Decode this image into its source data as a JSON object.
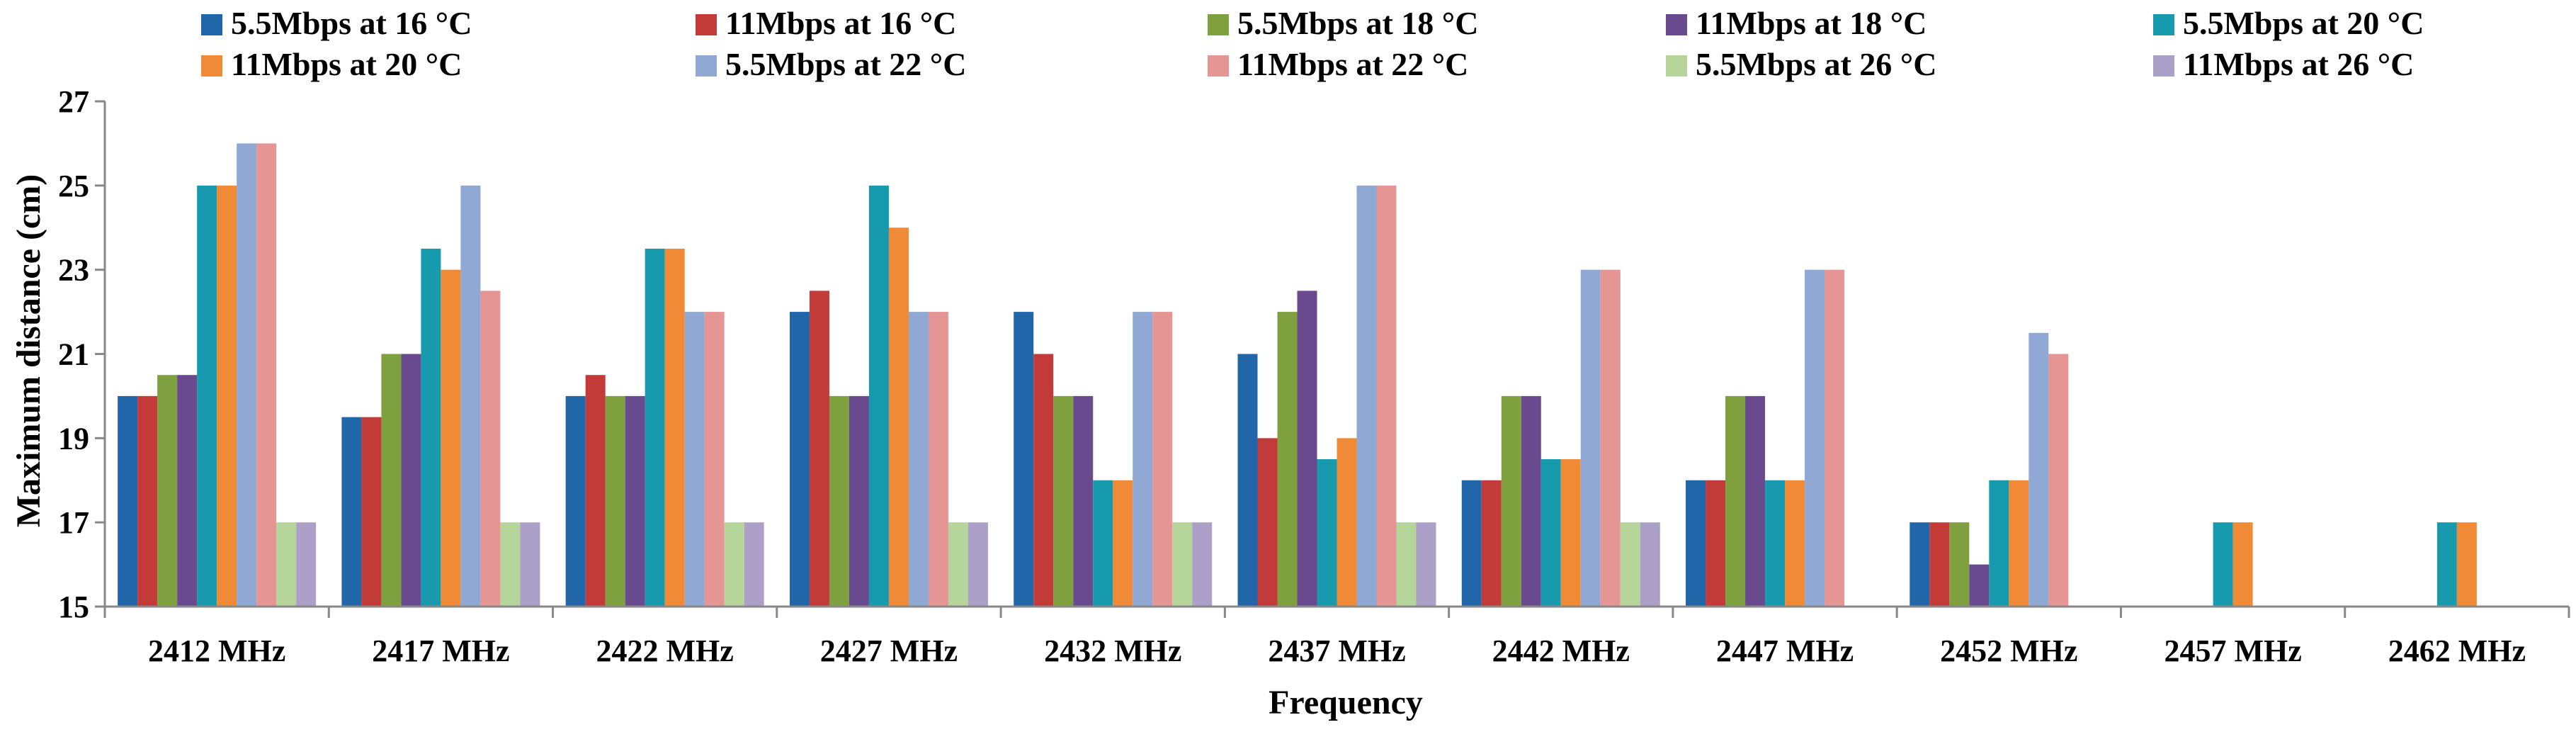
{
  "chart_data": {
    "type": "bar",
    "title": "",
    "xlabel": "Frequency",
    "ylabel": "Maximum distance (cm)",
    "ylim": [
      15,
      27
    ],
    "yticks": [
      15,
      17,
      19,
      21,
      23,
      25,
      27
    ],
    "grid": false,
    "legend_position": "top",
    "categories": [
      "2412 MHz",
      "2417 MHz",
      "2422 MHz",
      "2427 MHz",
      "2432 MHz",
      "2437 MHz",
      "2442 MHz",
      "2447 MHz",
      "2452 MHz",
      "2457 MHz",
      "2462 MHz"
    ],
    "series": [
      {
        "name": "5.5Mbps at 16 °C",
        "color": "#2166A8",
        "values": [
          20,
          19.5,
          20,
          22,
          22,
          21,
          18,
          18,
          17,
          null,
          null
        ]
      },
      {
        "name": "11Mbps at 16 °C",
        "color": "#C33B38",
        "values": [
          20,
          19.5,
          20.5,
          22.5,
          21,
          19,
          18,
          18,
          17,
          null,
          null
        ]
      },
      {
        "name": "5.5Mbps at 18 °C",
        "color": "#7FA03E",
        "values": [
          20.5,
          21,
          20,
          20,
          20,
          22,
          20,
          20,
          17,
          null,
          null
        ]
      },
      {
        "name": "11Mbps at 18 °C",
        "color": "#6A4A8E",
        "values": [
          20.5,
          21,
          20,
          20,
          20,
          22.5,
          20,
          20,
          16,
          null,
          null
        ]
      },
      {
        "name": "5.5Mbps at 20 °C",
        "color": "#179AAE",
        "values": [
          25,
          23.5,
          23.5,
          25,
          18,
          18.5,
          18.5,
          18,
          18,
          17,
          17
        ]
      },
      {
        "name": "11Mbps at 20 °C",
        "color": "#F08A36",
        "values": [
          25,
          23,
          23.5,
          24,
          18,
          19,
          18.5,
          18,
          18,
          17,
          17
        ]
      },
      {
        "name": "5.5Mbps at 22 °C",
        "color": "#8FA9D4",
        "values": [
          26,
          25,
          22,
          22,
          22,
          25,
          23,
          23,
          21.5,
          null,
          null
        ]
      },
      {
        "name": "11Mbps at 22 °C",
        "color": "#E69595",
        "values": [
          26,
          22.5,
          22,
          22,
          22,
          25,
          23,
          23,
          21,
          null,
          null
        ]
      },
      {
        "name": "5.5Mbps at 26 °C",
        "color": "#B5D59A",
        "values": [
          17,
          17,
          17,
          17,
          17,
          17,
          17,
          null,
          null,
          null,
          null
        ]
      },
      {
        "name": "11Mbps at 26 °C",
        "color": "#ADA0C8",
        "values": [
          17,
          17,
          17,
          17,
          17,
          17,
          17,
          null,
          null,
          null,
          null
        ]
      }
    ]
  }
}
